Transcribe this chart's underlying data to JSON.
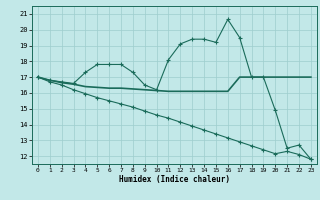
{
  "xlabel": "Humidex (Indice chaleur)",
  "bg_color": "#c2e8e8",
  "grid_color": "#9ecece",
  "line_color": "#1a6b5a",
  "xlim": [
    -0.5,
    23.5
  ],
  "ylim": [
    11.5,
    21.5
  ],
  "xticks": [
    0,
    1,
    2,
    3,
    4,
    5,
    6,
    7,
    8,
    9,
    10,
    11,
    12,
    13,
    14,
    15,
    16,
    17,
    18,
    19,
    20,
    21,
    22,
    23
  ],
  "yticks": [
    12,
    13,
    14,
    15,
    16,
    17,
    18,
    19,
    20,
    21
  ],
  "line1_x": [
    0,
    1,
    2,
    3,
    4,
    5,
    6,
    7,
    8,
    9,
    10,
    11,
    12,
    13,
    14,
    15,
    16,
    17,
    18,
    19,
    20,
    21,
    22,
    23
  ],
  "line1_y": [
    17.0,
    16.8,
    16.7,
    16.6,
    17.3,
    17.8,
    17.8,
    17.8,
    17.3,
    16.5,
    16.2,
    18.1,
    19.1,
    19.4,
    19.4,
    19.2,
    20.65,
    19.5,
    17.0,
    17.0,
    14.9,
    12.5,
    12.7,
    11.8
  ],
  "line2_x": [
    0,
    1,
    2,
    3,
    4,
    5,
    6,
    7,
    8,
    9,
    10,
    11,
    12,
    13,
    14,
    15,
    16,
    17,
    18,
    19,
    20,
    21,
    22,
    23
  ],
  "line2_y": [
    17.0,
    16.8,
    16.65,
    16.55,
    16.4,
    16.35,
    16.3,
    16.3,
    16.25,
    16.2,
    16.15,
    16.1,
    16.1,
    16.1,
    16.1,
    16.1,
    16.1,
    17.0,
    17.0,
    17.0,
    17.0,
    17.0,
    17.0,
    17.0
  ],
  "line3_x": [
    0,
    1,
    2,
    3,
    4,
    5,
    6,
    7,
    8,
    9,
    10,
    11,
    12,
    13,
    14,
    15,
    16,
    17,
    18,
    19,
    20,
    21,
    22,
    23
  ],
  "line3_y": [
    17.0,
    16.7,
    16.5,
    16.2,
    15.95,
    15.7,
    15.5,
    15.3,
    15.1,
    14.85,
    14.6,
    14.4,
    14.15,
    13.9,
    13.65,
    13.4,
    13.15,
    12.9,
    12.65,
    12.4,
    12.15,
    12.3,
    12.1,
    11.8
  ]
}
